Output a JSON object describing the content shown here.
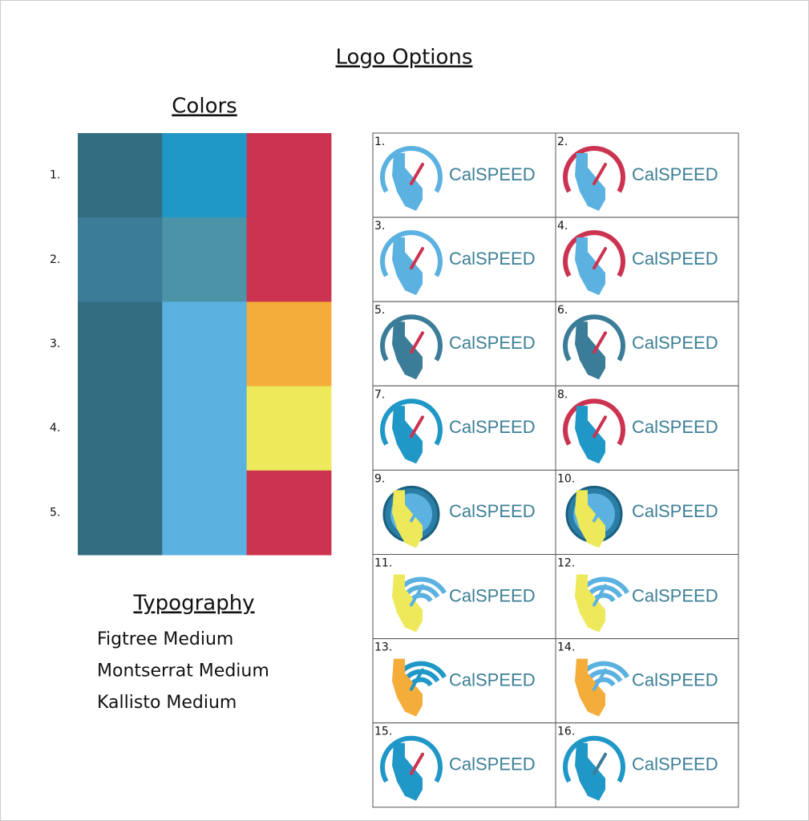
{
  "header": {
    "title": "Logo Options"
  },
  "colors": {
    "title": "Colors",
    "rows": [
      {
        "label": "1.",
        "swatches": [
          "#336d81",
          "#1f97c7",
          "#cb3350"
        ]
      },
      {
        "label": "2.",
        "swatches": [
          "#3b7c98",
          "#4c93a8",
          "#cb3350"
        ]
      },
      {
        "label": "3.",
        "swatches": [
          "#336d81",
          "#5bb1e0",
          "#f4ac3a"
        ]
      },
      {
        "label": "4.",
        "swatches": [
          "#336d81",
          "#5bb1e0",
          "#ede95a"
        ]
      },
      {
        "label": "5.",
        "swatches": [
          "#336d81",
          "#5bb1e0",
          "#cb3350"
        ]
      }
    ]
  },
  "typography": {
    "title": "Typography",
    "fonts": [
      "Figtree Medium",
      "Montserrat Medium",
      "Kallisto Medium"
    ]
  },
  "logos": [
    {
      "label": "1.",
      "wordmark": "CalSPEED"
    },
    {
      "label": "2.",
      "wordmark": "CalSPEED"
    },
    {
      "label": "3.",
      "wordmark": "CalSPEED"
    },
    {
      "label": "4.",
      "wordmark": "CalSPEED"
    },
    {
      "label": "5.",
      "wordmark": "CalSPEED"
    },
    {
      "label": "6.",
      "wordmark": "CalSPEED"
    },
    {
      "label": "7.",
      "wordmark": "CalSPEED"
    },
    {
      "label": "8.",
      "wordmark": "CalSPEED"
    },
    {
      "label": "9.",
      "wordmark": "CalSPEED"
    },
    {
      "label": "10.",
      "wordmark": "CalSPEED"
    },
    {
      "label": "11.",
      "wordmark": "CalSPEED"
    },
    {
      "label": "12.",
      "wordmark": "CalSPEED"
    },
    {
      "label": "13.",
      "wordmark": "CalSPEED"
    },
    {
      "label": "14.",
      "wordmark": "CalSPEED"
    },
    {
      "label": "15.",
      "wordmark": "CalSPEED"
    },
    {
      "label": "16.",
      "wordmark": "CalSPEED"
    }
  ]
}
